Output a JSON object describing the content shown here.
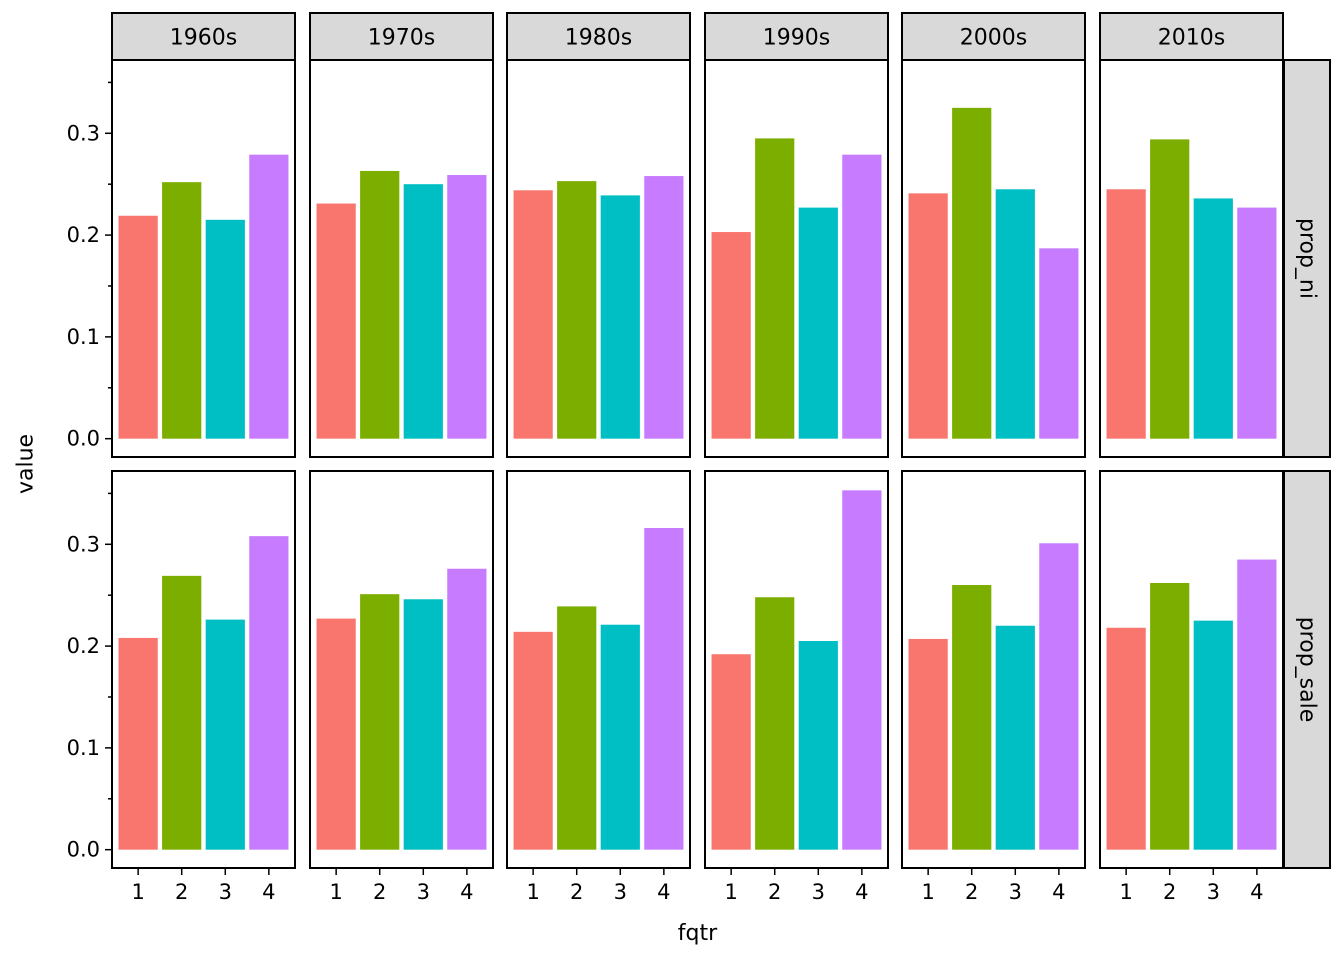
{
  "chart_data": {
    "type": "bar",
    "facet_columns": [
      "1960s",
      "1970s",
      "1980s",
      "1990s",
      "2000s",
      "2010s"
    ],
    "facet_rows": [
      "prop_ni",
      "prop_sale"
    ],
    "categories": [
      "1",
      "2",
      "3",
      "4"
    ],
    "xlabel": "fqtr",
    "ylabel": "value",
    "ylim": [
      -0.018,
      0.372
    ],
    "yticks": [
      0.0,
      0.1,
      0.2,
      0.3
    ],
    "ytick_labels": [
      "0.0",
      "0.1",
      "0.2",
      "0.3"
    ],
    "colors": [
      "#F8766D",
      "#7CAE00",
      "#00BFC4",
      "#C77CFF"
    ],
    "values": {
      "prop_ni": {
        "1960s": [
          0.219,
          0.252,
          0.215,
          0.279
        ],
        "1970s": [
          0.231,
          0.263,
          0.25,
          0.259
        ],
        "1980s": [
          0.244,
          0.253,
          0.239,
          0.258
        ],
        "1990s": [
          0.203,
          0.295,
          0.227,
          0.279
        ],
        "2000s": [
          0.241,
          0.325,
          0.245,
          0.187
        ],
        "2010s": [
          0.245,
          0.294,
          0.236,
          0.227
        ]
      },
      "prop_sale": {
        "1960s": [
          0.208,
          0.269,
          0.226,
          0.308
        ],
        "1970s": [
          0.227,
          0.251,
          0.246,
          0.276
        ],
        "1980s": [
          0.214,
          0.239,
          0.221,
          0.316
        ],
        "1990s": [
          0.192,
          0.248,
          0.205,
          0.353
        ],
        "2000s": [
          0.207,
          0.26,
          0.22,
          0.301
        ],
        "2010s": [
          0.218,
          0.262,
          0.225,
          0.285
        ]
      }
    },
    "grid": false,
    "legend": "none"
  }
}
